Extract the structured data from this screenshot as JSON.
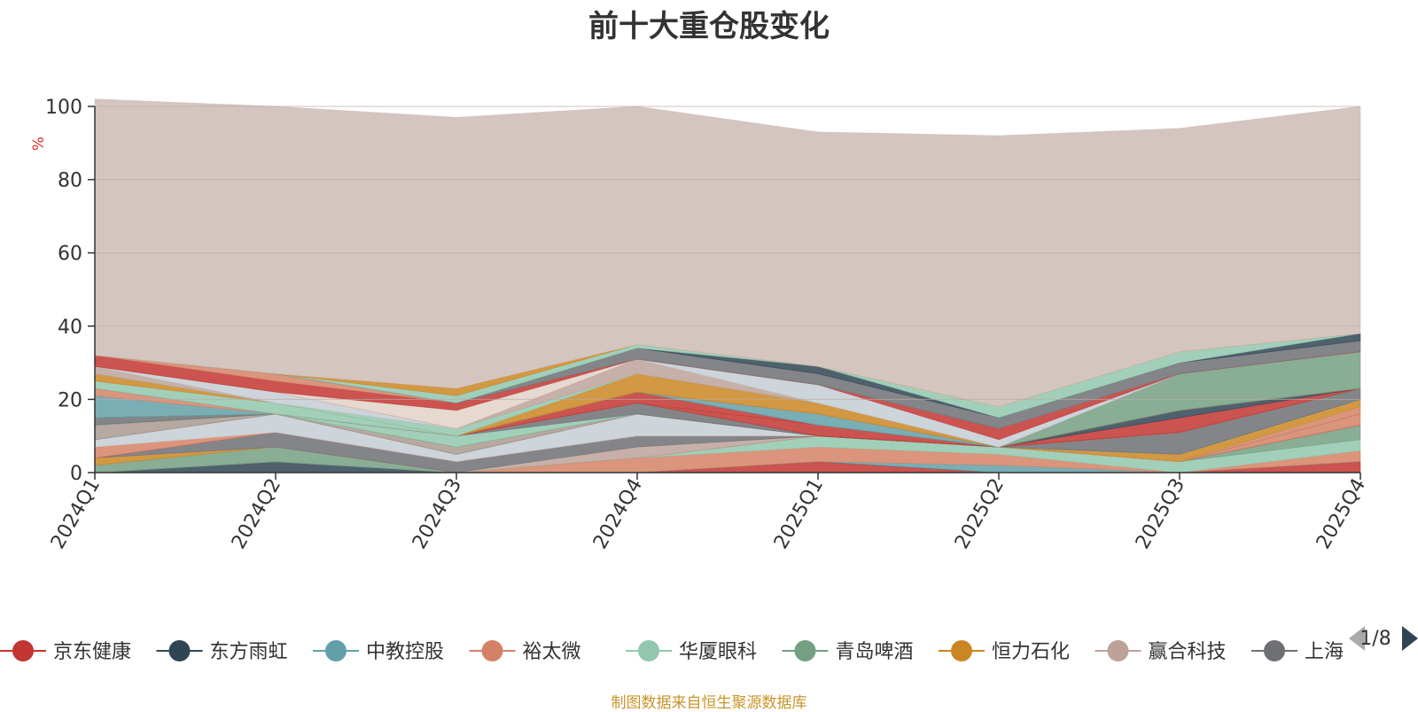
{
  "title": "前十大重仓股变化",
  "source_note": "制图数据来自恒生聚源数据库",
  "legend_pager": {
    "text": "1/8"
  },
  "colors": {
    "prev_arrow": "#aaaaaa",
    "next_arrow": "#2f4554",
    "axis_line": "#333333",
    "grid_line": "#bcaaa5",
    "ylabel": "#e03030"
  },
  "chart_data": {
    "type": "area",
    "stacked": true,
    "title": "前十大重仓股变化",
    "xlabel": "",
    "ylabel": "%",
    "ylim": [
      0,
      100
    ],
    "yticks": [
      0,
      20,
      40,
      60,
      80,
      100
    ],
    "grid": true,
    "legend_position": "bottom",
    "categories": [
      "2024Q1",
      "2024Q2",
      "2024Q3",
      "2024Q4",
      "2025Q1",
      "2025Q2",
      "2025Q3",
      "2025Q4"
    ],
    "series": [
      {
        "name": "京东健康",
        "color": "#c23531",
        "values": [
          0,
          0,
          0,
          0,
          3,
          0,
          0,
          3
        ]
      },
      {
        "name": "东方雨虹",
        "color": "#2f4554",
        "values": [
          0,
          3,
          0,
          0,
          0,
          0,
          0,
          0
        ]
      },
      {
        "name": "中教控股",
        "color": "#61a0a8",
        "values": [
          0,
          0,
          0,
          0,
          0,
          2,
          0,
          0
        ]
      },
      {
        "name": "裕太微",
        "color": "#d48265",
        "values": [
          0,
          0,
          0,
          4,
          4,
          3,
          0,
          3
        ]
      },
      {
        "name": "华厦眼科",
        "color": "#91c7ae",
        "values": [
          0,
          0,
          0,
          0,
          3,
          2,
          3,
          3
        ]
      },
      {
        "name": "青岛啤酒",
        "color": "#749f83",
        "values": [
          2,
          4,
          0,
          0,
          0,
          0,
          0,
          4
        ]
      },
      {
        "name": "恒力石化",
        "color": "#ca8622",
        "values": [
          2,
          0,
          0,
          0,
          0,
          0,
          0,
          0
        ]
      },
      {
        "name": "赢合科技",
        "color": "#bda29a",
        "values": [
          0,
          0,
          0,
          3,
          0,
          0,
          0,
          0
        ]
      },
      {
        "name": "上海",
        "color": "#6e7074",
        "values": [
          0,
          4,
          3,
          3,
          0,
          0,
          0,
          0
        ]
      },
      {
        "color": "#c23531",
        "values": [
          0,
          0,
          0,
          0,
          0,
          0,
          0,
          0
        ]
      },
      {
        "color": "#d48265",
        "values": [
          3,
          0,
          0,
          0,
          0,
          0,
          0,
          3
        ]
      },
      {
        "color": "#c4ccd3",
        "values": [
          2,
          5,
          2,
          6,
          0,
          0,
          0,
          0
        ]
      },
      {
        "color": "#d48265",
        "values": [
          0,
          0,
          0,
          0,
          0,
          0,
          0,
          0
        ]
      },
      {
        "color": "#bda29a",
        "values": [
          0,
          0,
          0,
          0,
          0,
          0,
          0,
          0
        ]
      },
      {
        "color": "#6e7074",
        "values": [
          0,
          0,
          0,
          0,
          0,
          0,
          0,
          0
        ]
      },
      {
        "color": "#a99a91",
        "values": [
          4,
          0,
          2,
          0,
          0,
          0,
          0,
          0
        ]
      },
      {
        "color": "#d48265",
        "values": [
          0,
          0,
          0,
          0,
          0,
          0,
          0,
          2
        ]
      },
      {
        "color": "#e0d2c8",
        "values": [
          0,
          0,
          0,
          0,
          0,
          0,
          0,
          0
        ]
      },
      {
        "color": "#ca8622",
        "values": [
          0,
          0,
          0,
          0,
          0,
          0,
          2,
          2
        ]
      },
      {
        "color": "#6e7074",
        "values": [
          0,
          0,
          0,
          0,
          0,
          0,
          0,
          0
        ]
      },
      {
        "color": "#749f83",
        "values": [
          0,
          0,
          0,
          0,
          0,
          0,
          0,
          0
        ]
      },
      {
        "color": "#91c7ae",
        "values": [
          0,
          0,
          3,
          0,
          0,
          0,
          0,
          0
        ]
      },
      {
        "color": "#6e7074",
        "values": [
          2,
          0,
          0,
          3,
          0,
          0,
          6,
          3
        ]
      },
      {
        "color": "#c23531",
        "values": [
          0,
          0,
          0,
          0,
          3,
          0,
          0,
          0
        ]
      },
      {
        "color": "#d48265",
        "values": [
          0,
          0,
          0,
          0,
          0,
          0,
          0,
          0
        ]
      },
      {
        "color": "#c23531",
        "values": [
          0,
          0,
          0,
          3,
          0,
          0,
          4,
          0
        ]
      },
      {
        "color": "#2f4554",
        "values": [
          0,
          0,
          0,
          0,
          0,
          0,
          2,
          0
        ]
      },
      {
        "color": "#91c7ae",
        "values": [
          0,
          0,
          0,
          0,
          0,
          0,
          0,
          0
        ]
      },
      {
        "color": "#61a0a8",
        "values": [
          6,
          0,
          0,
          0,
          3,
          0,
          0,
          0
        ]
      },
      {
        "color": "#d48265",
        "values": [
          2,
          0,
          0,
          0,
          0,
          0,
          0,
          0
        ]
      },
      {
        "color": "#c23531",
        "values": [
          0,
          0,
          0,
          0,
          0,
          0,
          0,
          0
        ]
      },
      {
        "color": "#749f83",
        "values": [
          0,
          0,
          0,
          0,
          0,
          0,
          10,
          10
        ]
      },
      {
        "color": "#91c7ae",
        "values": [
          2,
          3,
          0,
          0,
          0,
          0,
          0,
          0
        ]
      },
      {
        "color": "#ca8622",
        "values": [
          2,
          0,
          0,
          5,
          3,
          0,
          0,
          0
        ]
      },
      {
        "color": "#91c7ae",
        "values": [
          0,
          0,
          2,
          0,
          0,
          0,
          0,
          0
        ]
      },
      {
        "color": "#bda29a",
        "values": [
          2,
          0,
          0,
          4,
          0,
          0,
          0,
          0
        ]
      },
      {
        "color": "#c4ccd3",
        "values": [
          0,
          3,
          0,
          0,
          5,
          2,
          0,
          0
        ]
      },
      {
        "color": "#c23531",
        "values": [
          0,
          0,
          0,
          0,
          0,
          3,
          0,
          0
        ]
      },
      {
        "color": "#e0d2c8",
        "values": [
          0,
          0,
          5,
          0,
          0,
          0,
          0,
          0
        ]
      },
      {
        "color": "#c23531",
        "values": [
          3,
          3,
          2,
          0,
          0,
          0,
          0,
          0
        ]
      },
      {
        "color": "#d48265",
        "values": [
          0,
          2,
          0,
          0,
          0,
          0,
          0,
          0
        ]
      },
      {
        "color": "#6e7074",
        "values": [
          0,
          0,
          0,
          3,
          3,
          3,
          3,
          3
        ]
      },
      {
        "color": "#2f4554",
        "values": [
          0,
          0,
          0,
          0,
          2,
          0,
          0,
          2
        ]
      },
      {
        "color": "#91c7ae",
        "values": [
          0,
          0,
          2,
          1,
          0,
          3,
          3,
          0
        ]
      },
      {
        "color": "#ca8622",
        "values": [
          0,
          0,
          2,
          0,
          0,
          0,
          0,
          0
        ]
      },
      {
        "color": "#cdbbb5",
        "values": [
          70,
          73,
          74,
          65,
          64,
          74,
          61,
          62
        ]
      }
    ]
  }
}
